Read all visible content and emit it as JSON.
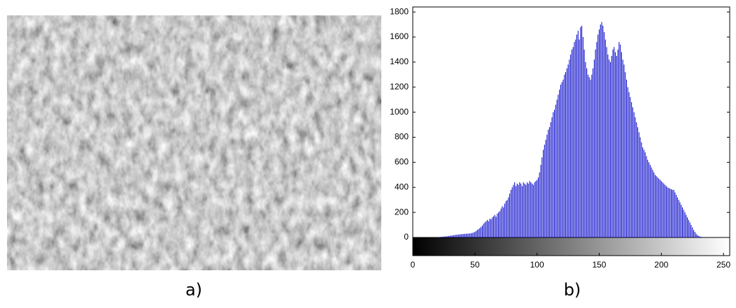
{
  "image_caption": "a)",
  "chart_data": {
    "type": "histogram",
    "caption": "b)",
    "color": "#0000c8",
    "x": [
      0,
      1,
      2,
      3,
      4,
      5,
      6,
      7,
      8,
      9,
      10,
      11,
      12,
      13,
      14,
      15,
      16,
      17,
      18,
      19,
      20,
      21,
      22,
      23,
      24,
      25,
      26,
      27,
      28,
      29,
      30,
      31,
      32,
      33,
      34,
      35,
      36,
      37,
      38,
      39,
      40,
      41,
      42,
      43,
      44,
      45,
      46,
      47,
      48,
      49,
      50,
      51,
      52,
      53,
      54,
      55,
      56,
      57,
      58,
      59,
      60,
      61,
      62,
      63,
      64,
      65,
      66,
      67,
      68,
      69,
      70,
      71,
      72,
      73,
      74,
      75,
      76,
      77,
      78,
      79,
      80,
      81,
      82,
      83,
      84,
      85,
      86,
      87,
      88,
      89,
      90,
      91,
      92,
      93,
      94,
      95,
      96,
      97,
      98,
      99,
      100,
      101,
      102,
      103,
      104,
      105,
      106,
      107,
      108,
      109,
      110,
      111,
      112,
      113,
      114,
      115,
      116,
      117,
      118,
      119,
      120,
      121,
      122,
      123,
      124,
      125,
      126,
      127,
      128,
      129,
      130,
      131,
      132,
      133,
      134,
      135,
      136,
      137,
      138,
      139,
      140,
      141,
      142,
      143,
      144,
      145,
      146,
      147,
      148,
      149,
      150,
      151,
      152,
      153,
      154,
      155,
      156,
      157,
      158,
      159,
      160,
      161,
      162,
      163,
      164,
      165,
      166,
      167,
      168,
      169,
      170,
      171,
      172,
      173,
      174,
      175,
      176,
      177,
      178,
      179,
      180,
      181,
      182,
      183,
      184,
      185,
      186,
      187,
      188,
      189,
      190,
      191,
      192,
      193,
      194,
      195,
      196,
      197,
      198,
      199,
      200,
      201,
      202,
      203,
      204,
      205,
      206,
      207,
      208,
      209,
      210,
      211,
      212,
      213,
      214,
      215,
      216,
      217,
      218,
      219,
      220,
      221,
      222,
      223,
      224,
      225,
      226,
      227,
      228,
      229,
      230,
      231,
      232,
      233,
      234,
      235,
      236,
      237,
      238,
      239,
      240,
      241,
      242,
      243,
      244,
      245,
      246,
      247,
      248,
      249,
      250,
      251,
      252,
      253,
      254,
      255
    ],
    "values": [
      0,
      0,
      0,
      0,
      0,
      0,
      0,
      0,
      0,
      0,
      0,
      0,
      0,
      0,
      0,
      0,
      0,
      0,
      0,
      0,
      2,
      3,
      4,
      5,
      6,
      7,
      8,
      9,
      10,
      12,
      14,
      15,
      17,
      18,
      20,
      21,
      22,
      24,
      25,
      26,
      27,
      28,
      29,
      30,
      30,
      31,
      32,
      34,
      36,
      40,
      45,
      52,
      60,
      68,
      75,
      85,
      95,
      110,
      120,
      130,
      140,
      130,
      150,
      145,
      160,
      170,
      180,
      165,
      190,
      200,
      210,
      230,
      250,
      240,
      270,
      290,
      300,
      320,
      350,
      380,
      400,
      420,
      440,
      410,
      430,
      420,
      440,
      430,
      410,
      440,
      430,
      420,
      440,
      430,
      450,
      440,
      430,
      420,
      440,
      450,
      460,
      480,
      520,
      580,
      640,
      700,
      740,
      780,
      820,
      860,
      880,
      920,
      960,
      1000,
      1020,
      1060,
      1100,
      1140,
      1180,
      1220,
      1240,
      1260,
      1300,
      1320,
      1350,
      1380,
      1420,
      1460,
      1500,
      1520,
      1560,
      1580,
      1620,
      1650,
      1580,
      1680,
      1690,
      1600,
      1500,
      1400,
      1350,
      1300,
      1280,
      1260,
      1300,
      1350,
      1420,
      1500,
      1560,
      1620,
      1660,
      1700,
      1720,
      1690,
      1640,
      1580,
      1520,
      1460,
      1420,
      1400,
      1450,
      1500,
      1520,
      1480,
      1450,
      1500,
      1560,
      1540,
      1480,
      1420,
      1380,
      1320,
      1260,
      1200,
      1160,
      1120,
      1080,
      1040,
      1000,
      960,
      920,
      880,
      840,
      800,
      760,
      720,
      700,
      680,
      650,
      620,
      600,
      580,
      560,
      540,
      520,
      500,
      490,
      480,
      470,
      460,
      450,
      440,
      430,
      420,
      410,
      400,
      395,
      390,
      385,
      380,
      380,
      360,
      340,
      320,
      300,
      280,
      260,
      240,
      220,
      200,
      180,
      160,
      140,
      120,
      100,
      80,
      60,
      45,
      30,
      20,
      12,
      8,
      5,
      3,
      2,
      1,
      0,
      0,
      0,
      0,
      0,
      0,
      0,
      0,
      0,
      0,
      0,
      0,
      0,
      0,
      0,
      0,
      0,
      0,
      0,
      0
    ],
    "xlim": [
      0,
      255
    ],
    "xticks": [
      0,
      50,
      100,
      150,
      200,
      250
    ],
    "ylim": [
      0,
      1840
    ],
    "yticks": [
      0,
      200,
      400,
      600,
      800,
      1000,
      1200,
      1400,
      1600,
      1800
    ]
  }
}
